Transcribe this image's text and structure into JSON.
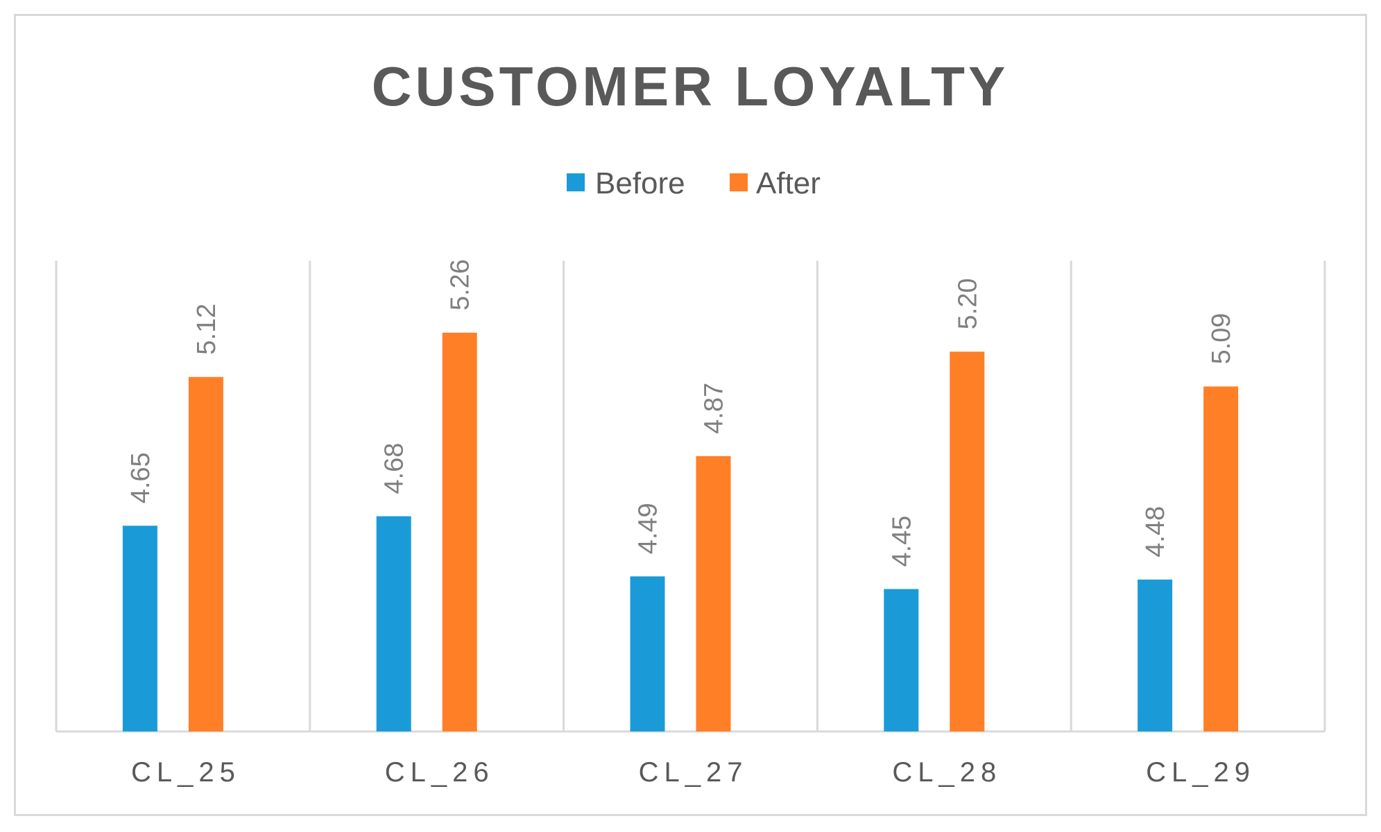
{
  "chart_data": {
    "type": "bar",
    "title": "CUSTOMER  LOYALTY",
    "categories": [
      "CL_25",
      "CL_26",
      "CL_27",
      "CL_28",
      "CL_29"
    ],
    "series": [
      {
        "name": "Before",
        "color": "#1a9bd7",
        "values": [
          4.65,
          4.68,
          4.49,
          4.45,
          4.48
        ]
      },
      {
        "name": "After",
        "color": "#ff7f27",
        "values": [
          5.12,
          5.26,
          4.87,
          5.2,
          5.09
        ]
      }
    ],
    "value_labels": {
      "Before": [
        "4.65",
        "4.68",
        "4.49",
        "4.45",
        "4.48"
      ],
      "After": [
        "5.12",
        "5.26",
        "4.87",
        "5.20",
        "5.09"
      ]
    },
    "ylim": [
      4.0,
      5.5
    ],
    "grid": false,
    "legend_position": "top-center",
    "xlabel": "",
    "ylabel": ""
  },
  "colors": {
    "axis": "#d9d9d9",
    "text": "#595959",
    "label": "#7f7f7f"
  }
}
